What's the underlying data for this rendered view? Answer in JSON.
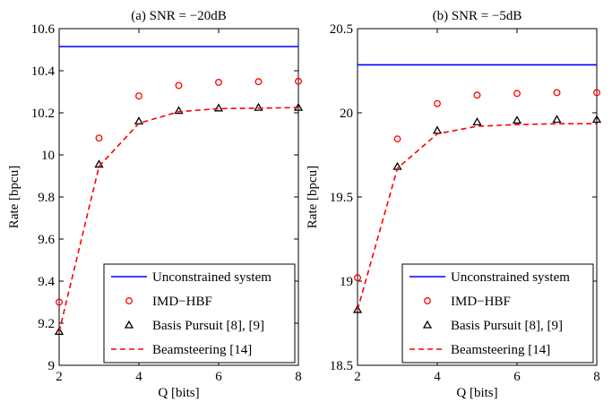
{
  "chart_data": [
    {
      "type": "line",
      "title": "(a) SNR = −20dB",
      "xlabel": "Q [bits]",
      "ylabel": "Rate [bpcu]",
      "xlim": [
        2,
        8
      ],
      "ylim": [
        9,
        10.6
      ],
      "xticks": [
        2,
        4,
        6,
        8
      ],
      "yticks": [
        9,
        9.2,
        9.4,
        9.6,
        9.8,
        10,
        10.2,
        10.4,
        10.6
      ],
      "ytick_labels": [
        "9",
        "9.2",
        "9.4",
        "9.6",
        "9.8",
        "10",
        "10.2",
        "10.4",
        "10.6"
      ],
      "x": [
        2,
        3,
        4,
        5,
        6,
        7,
        8
      ],
      "legend_position": "bottom-right",
      "grid": false,
      "series": [
        {
          "name": "Unconstrained system",
          "style": "solid-line",
          "color": "#0000ff",
          "x": [
            2,
            8
          ],
          "values": [
            10.515,
            10.515
          ]
        },
        {
          "name": "IMD−HBF",
          "style": "circle-markers",
          "color": "#ff0000",
          "values": [
            9.3,
            10.08,
            10.28,
            10.33,
            10.345,
            10.348,
            10.35
          ]
        },
        {
          "name": "Basis Pursuit [8], [9]",
          "style": "triangle-markers",
          "color": "#000000",
          "values": [
            9.16,
            9.955,
            10.16,
            10.21,
            10.222,
            10.225,
            10.225
          ]
        },
        {
          "name": "Beamsteering [14]",
          "style": "dashed-line",
          "color": "#ff0000",
          "values": [
            9.16,
            9.945,
            10.15,
            10.205,
            10.22,
            10.222,
            10.225
          ]
        }
      ]
    },
    {
      "type": "line",
      "title": "(b) SNR = −5dB",
      "xlabel": "Q [bits]",
      "ylabel": "Rate [bpcu]",
      "xlim": [
        2,
        8
      ],
      "ylim": [
        18.5,
        20.5
      ],
      "xticks": [
        2,
        4,
        6,
        8
      ],
      "yticks": [
        18.5,
        19,
        19.5,
        20,
        20.5
      ],
      "ytick_labels": [
        "18.5",
        "19",
        "19.5",
        "20",
        "20.5"
      ],
      "x": [
        2,
        3,
        4,
        5,
        6,
        7,
        8
      ],
      "legend_position": "bottom-right",
      "grid": false,
      "series": [
        {
          "name": "Unconstrained system",
          "style": "solid-line",
          "color": "#0000ff",
          "x": [
            2,
            8
          ],
          "values": [
            20.285,
            20.285
          ]
        },
        {
          "name": "IMD−HBF",
          "style": "circle-markers",
          "color": "#ff0000",
          "values": [
            19.02,
            19.845,
            20.055,
            20.105,
            20.115,
            20.12,
            20.12
          ]
        },
        {
          "name": "Basis Pursuit [8], [9]",
          "style": "triangle-markers",
          "color": "#000000",
          "values": [
            18.83,
            19.68,
            19.895,
            19.945,
            19.955,
            19.96,
            19.96
          ]
        },
        {
          "name": "Beamsteering [14]",
          "style": "dashed-line",
          "color": "#ff0000",
          "values": [
            18.83,
            19.67,
            19.875,
            19.92,
            19.93,
            19.935,
            19.935
          ]
        }
      ]
    }
  ]
}
